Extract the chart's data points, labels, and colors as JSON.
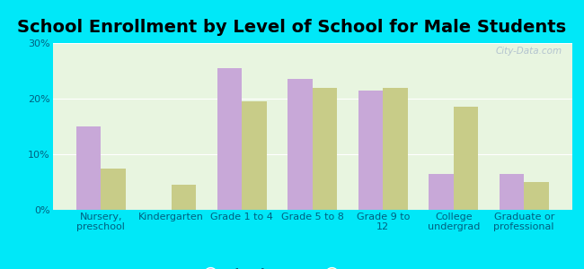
{
  "title": "School Enrollment by Level of School for Male Students",
  "categories": [
    "Nursery,\npreschool",
    "Kindergarten",
    "Grade 1 to 4",
    "Grade 5 to 8",
    "Grade 9 to\n12",
    "College\nundergrad",
    "Graduate or\nprofessional"
  ],
  "flemington": [
    15.0,
    0.0,
    25.5,
    23.5,
    21.5,
    6.5,
    6.5
  ],
  "new_jersey": [
    7.5,
    4.5,
    19.5,
    22.0,
    22.0,
    18.5,
    5.0
  ],
  "flemington_color": "#c8a8d8",
  "new_jersey_color": "#c8cc88",
  "background_outer": "#00e8f8",
  "background_inner_top": "#e8f5e0",
  "background_inner_bottom": "#f5fff0",
  "ylim": [
    0,
    30
  ],
  "yticks": [
    0,
    10,
    20,
    30
  ],
  "ytick_labels": [
    "0%",
    "10%",
    "20%",
    "30%"
  ],
  "bar_width": 0.35,
  "title_fontsize": 14,
  "legend_fontsize": 10,
  "tick_fontsize": 8,
  "watermark": "City-Data.com",
  "text_color": "#006080"
}
